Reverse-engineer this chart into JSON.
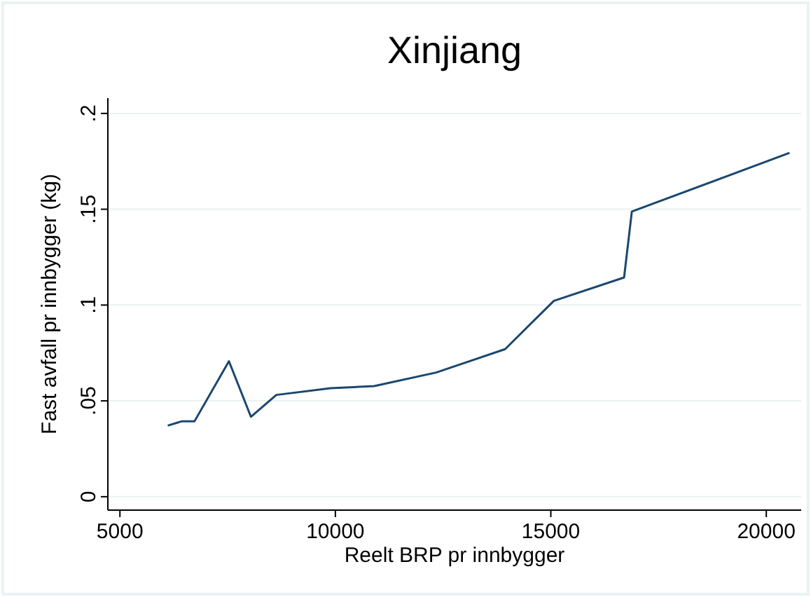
{
  "chart_data": {
    "type": "line",
    "title": "Xinjiang",
    "xlabel": "Reelt BRP pr innbygger",
    "ylabel": "Fast avfall pr innbygger (kg)",
    "x": [
      6110,
      6430,
      6730,
      7530,
      8040,
      8630,
      9890,
      10900,
      12340,
      13940,
      15070,
      16700,
      16880,
      20540
    ],
    "series": [
      {
        "color": "#1a476f",
        "values": [
          0.0371,
          0.0393,
          0.0393,
          0.0707,
          0.0417,
          0.0531,
          0.0566,
          0.0577,
          0.0648,
          0.077,
          0.1022,
          0.1144,
          0.1488,
          0.1794
        ]
      }
    ],
    "xlim": [
      4720,
      20810
    ],
    "xticks": [
      5000,
      10000,
      15000,
      20000
    ],
    "ylim": [
      -0.007,
      0.208
    ],
    "yticks": [
      {
        "value": 0,
        "label": "0"
      },
      {
        "value": 0.05,
        "label": ".05"
      },
      {
        "value": 0.1,
        "label": ".1"
      },
      {
        "value": 0.15,
        "label": ".15"
      },
      {
        "value": 0.2,
        "label": ".2"
      }
    ],
    "grid": "y",
    "marker": "none",
    "line_style": "solid"
  }
}
